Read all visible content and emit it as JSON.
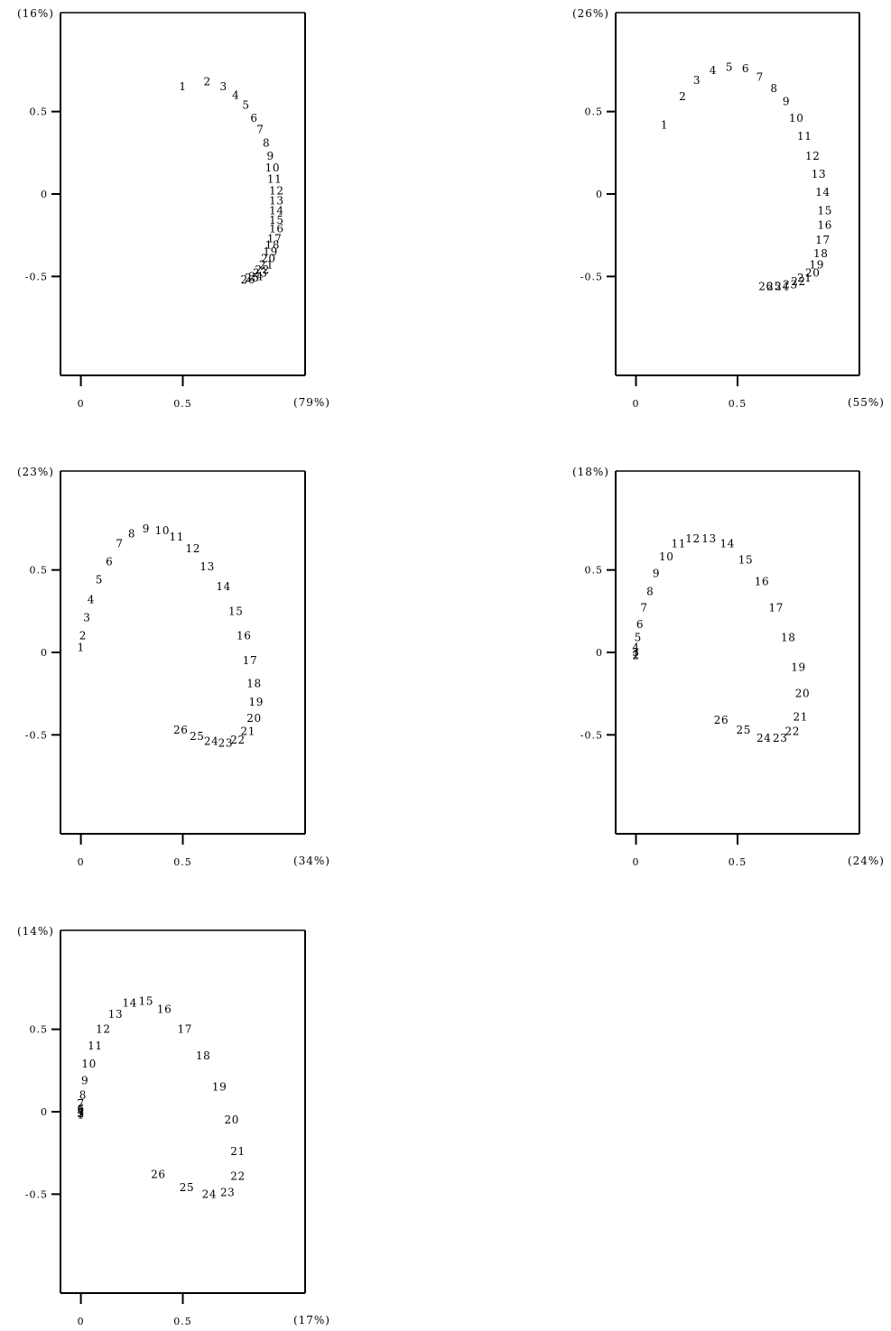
{
  "chart_data": [
    {
      "type": "scatter",
      "x_percent_label": "(79%)",
      "y_percent_label": "(16%)",
      "xlim": [
        -0.1,
        1.1
      ],
      "ylim": [
        -1.1,
        1.1
      ],
      "x_ticks": [
        {
          "value": 0,
          "label": "0"
        },
        {
          "value": 0.5,
          "label": "0.5"
        }
      ],
      "y_ticks": [
        {
          "value": 0.5,
          "label": "0.5"
        },
        {
          "value": 0,
          "label": "0"
        },
        {
          "value": -0.5,
          "label": "-0.5"
        }
      ],
      "points": [
        {
          "label": "1",
          "x": 0.5,
          "y": 0.65
        },
        {
          "label": "2",
          "x": 0.62,
          "y": 0.68
        },
        {
          "label": "3",
          "x": 0.7,
          "y": 0.65
        },
        {
          "label": "4",
          "x": 0.76,
          "y": 0.6
        },
        {
          "label": "5",
          "x": 0.81,
          "y": 0.54
        },
        {
          "label": "6",
          "x": 0.85,
          "y": 0.46
        },
        {
          "label": "7",
          "x": 0.88,
          "y": 0.39
        },
        {
          "label": "8",
          "x": 0.91,
          "y": 0.31
        },
        {
          "label": "9",
          "x": 0.93,
          "y": 0.23
        },
        {
          "label": "10",
          "x": 0.94,
          "y": 0.16
        },
        {
          "label": "11",
          "x": 0.95,
          "y": 0.09
        },
        {
          "label": "12",
          "x": 0.96,
          "y": 0.02
        },
        {
          "label": "13",
          "x": 0.96,
          "y": -0.04
        },
        {
          "label": "14",
          "x": 0.96,
          "y": -0.1
        },
        {
          "label": "15",
          "x": 0.96,
          "y": -0.16
        },
        {
          "label": "16",
          "x": 0.96,
          "y": -0.21
        },
        {
          "label": "17",
          "x": 0.95,
          "y": -0.27
        },
        {
          "label": "18",
          "x": 0.94,
          "y": -0.31
        },
        {
          "label": "19",
          "x": 0.93,
          "y": -0.35
        },
        {
          "label": "20",
          "x": 0.92,
          "y": -0.39
        },
        {
          "label": "21",
          "x": 0.91,
          "y": -0.43
        },
        {
          "label": "22",
          "x": 0.89,
          "y": -0.46
        },
        {
          "label": "23",
          "x": 0.88,
          "y": -0.48
        },
        {
          "label": "24",
          "x": 0.86,
          "y": -0.5
        },
        {
          "label": "25",
          "x": 0.84,
          "y": -0.51
        },
        {
          "label": "26",
          "x": 0.82,
          "y": -0.52
        }
      ]
    },
    {
      "type": "scatter",
      "x_percent_label": "(55%)",
      "y_percent_label": "(26%)",
      "xlim": [
        -0.1,
        1.1
      ],
      "ylim": [
        -1.1,
        1.1
      ],
      "x_ticks": [
        {
          "value": 0,
          "label": "0"
        },
        {
          "value": 0.5,
          "label": "0.5"
        }
      ],
      "y_ticks": [
        {
          "value": 0.5,
          "label": "0.5"
        },
        {
          "value": 0,
          "label": "0"
        },
        {
          "value": -0.5,
          "label": "-0.5"
        }
      ],
      "points": [
        {
          "label": "1",
          "x": 0.14,
          "y": 0.42
        },
        {
          "label": "2",
          "x": 0.23,
          "y": 0.59
        },
        {
          "label": "3",
          "x": 0.3,
          "y": 0.69
        },
        {
          "label": "4",
          "x": 0.38,
          "y": 0.75
        },
        {
          "label": "5",
          "x": 0.46,
          "y": 0.77
        },
        {
          "label": "6",
          "x": 0.54,
          "y": 0.76
        },
        {
          "label": "7",
          "x": 0.61,
          "y": 0.71
        },
        {
          "label": "8",
          "x": 0.68,
          "y": 0.64
        },
        {
          "label": "9",
          "x": 0.74,
          "y": 0.56
        },
        {
          "label": "10",
          "x": 0.79,
          "y": 0.46
        },
        {
          "label": "11",
          "x": 0.83,
          "y": 0.35
        },
        {
          "label": "12",
          "x": 0.87,
          "y": 0.23
        },
        {
          "label": "13",
          "x": 0.9,
          "y": 0.12
        },
        {
          "label": "14",
          "x": 0.92,
          "y": 0.01
        },
        {
          "label": "15",
          "x": 0.93,
          "y": -0.1
        },
        {
          "label": "16",
          "x": 0.93,
          "y": -0.19
        },
        {
          "label": "17",
          "x": 0.92,
          "y": -0.28
        },
        {
          "label": "18",
          "x": 0.91,
          "y": -0.36
        },
        {
          "label": "19",
          "x": 0.89,
          "y": -0.43
        },
        {
          "label": "20",
          "x": 0.87,
          "y": -0.48
        },
        {
          "label": "21",
          "x": 0.83,
          "y": -0.51
        },
        {
          "label": "22",
          "x": 0.8,
          "y": -0.53
        },
        {
          "label": "23",
          "x": 0.76,
          "y": -0.55
        },
        {
          "label": "24",
          "x": 0.72,
          "y": -0.56
        },
        {
          "label": "25",
          "x": 0.68,
          "y": -0.56
        },
        {
          "label": "26",
          "x": 0.64,
          "y": -0.56
        }
      ]
    },
    {
      "type": "scatter",
      "x_percent_label": "(34%)",
      "y_percent_label": "(23%)",
      "xlim": [
        -0.1,
        1.1
      ],
      "ylim": [
        -1.1,
        1.1
      ],
      "x_ticks": [
        {
          "value": 0,
          "label": "0"
        },
        {
          "value": 0.5,
          "label": "0.5"
        }
      ],
      "y_ticks": [
        {
          "value": 0.5,
          "label": "0.5"
        },
        {
          "value": 0,
          "label": "0"
        },
        {
          "value": -0.5,
          "label": "-0.5"
        }
      ],
      "points": [
        {
          "label": "1",
          "x": 0.0,
          "y": 0.03
        },
        {
          "label": "2",
          "x": 0.01,
          "y": 0.1
        },
        {
          "label": "3",
          "x": 0.03,
          "y": 0.21
        },
        {
          "label": "4",
          "x": 0.05,
          "y": 0.32
        },
        {
          "label": "5",
          "x": 0.09,
          "y": 0.44
        },
        {
          "label": "6",
          "x": 0.14,
          "y": 0.55
        },
        {
          "label": "7",
          "x": 0.19,
          "y": 0.66
        },
        {
          "label": "8",
          "x": 0.25,
          "y": 0.72
        },
        {
          "label": "9",
          "x": 0.32,
          "y": 0.75
        },
        {
          "label": "10",
          "x": 0.4,
          "y": 0.74
        },
        {
          "label": "11",
          "x": 0.47,
          "y": 0.7
        },
        {
          "label": "12",
          "x": 0.55,
          "y": 0.63
        },
        {
          "label": "13",
          "x": 0.62,
          "y": 0.52
        },
        {
          "label": "14",
          "x": 0.7,
          "y": 0.4
        },
        {
          "label": "15",
          "x": 0.76,
          "y": 0.25
        },
        {
          "label": "16",
          "x": 0.8,
          "y": 0.1
        },
        {
          "label": "17",
          "x": 0.83,
          "y": -0.05
        },
        {
          "label": "18",
          "x": 0.85,
          "y": -0.19
        },
        {
          "label": "19",
          "x": 0.86,
          "y": -0.3
        },
        {
          "label": "20",
          "x": 0.85,
          "y": -0.4
        },
        {
          "label": "21",
          "x": 0.82,
          "y": -0.48
        },
        {
          "label": "22",
          "x": 0.77,
          "y": -0.53
        },
        {
          "label": "23",
          "x": 0.71,
          "y": -0.55
        },
        {
          "label": "24",
          "x": 0.64,
          "y": -0.54
        },
        {
          "label": "25",
          "x": 0.57,
          "y": -0.51
        },
        {
          "label": "26",
          "x": 0.49,
          "y": -0.47
        }
      ]
    },
    {
      "type": "scatter",
      "x_percent_label": "(24%)",
      "y_percent_label": "(18%)",
      "xlim": [
        -0.1,
        1.1
      ],
      "ylim": [
        -1.1,
        1.1
      ],
      "x_ticks": [
        {
          "value": 0,
          "label": "0"
        },
        {
          "value": 0.5,
          "label": "0.5"
        }
      ],
      "y_ticks": [
        {
          "value": 0.5,
          "label": "0.5"
        },
        {
          "value": 0,
          "label": "0"
        },
        {
          "value": -0.5,
          "label": "-0.5"
        }
      ],
      "points": [
        {
          "label": "1",
          "x": 0.0,
          "y": -0.01
        },
        {
          "label": "2",
          "x": 0.0,
          "y": -0.02
        },
        {
          "label": "3",
          "x": 0.0,
          "y": 0.0
        },
        {
          "label": "4",
          "x": 0.0,
          "y": 0.03
        },
        {
          "label": "5",
          "x": 0.01,
          "y": 0.09
        },
        {
          "label": "6",
          "x": 0.02,
          "y": 0.17
        },
        {
          "label": "7",
          "x": 0.04,
          "y": 0.27
        },
        {
          "label": "8",
          "x": 0.07,
          "y": 0.37
        },
        {
          "label": "9",
          "x": 0.1,
          "y": 0.48
        },
        {
          "label": "10",
          "x": 0.15,
          "y": 0.58
        },
        {
          "label": "11",
          "x": 0.21,
          "y": 0.66
        },
        {
          "label": "12",
          "x": 0.28,
          "y": 0.69
        },
        {
          "label": "13",
          "x": 0.36,
          "y": 0.69
        },
        {
          "label": "14",
          "x": 0.45,
          "y": 0.66
        },
        {
          "label": "15",
          "x": 0.54,
          "y": 0.56
        },
        {
          "label": "16",
          "x": 0.62,
          "y": 0.43
        },
        {
          "label": "17",
          "x": 0.69,
          "y": 0.27
        },
        {
          "label": "18",
          "x": 0.75,
          "y": 0.09
        },
        {
          "label": "19",
          "x": 0.8,
          "y": -0.09
        },
        {
          "label": "20",
          "x": 0.82,
          "y": -0.25
        },
        {
          "label": "21",
          "x": 0.81,
          "y": -0.39
        },
        {
          "label": "22",
          "x": 0.77,
          "y": -0.48
        },
        {
          "label": "23",
          "x": 0.71,
          "y": -0.52
        },
        {
          "label": "24",
          "x": 0.63,
          "y": -0.52
        },
        {
          "label": "25",
          "x": 0.53,
          "y": -0.47
        },
        {
          "label": "26",
          "x": 0.42,
          "y": -0.41
        }
      ]
    },
    {
      "type": "scatter",
      "x_percent_label": "(17%)",
      "y_percent_label": "(14%)",
      "xlim": [
        -0.1,
        1.1
      ],
      "ylim": [
        -1.1,
        1.1
      ],
      "x_ticks": [
        {
          "value": 0,
          "label": "0"
        },
        {
          "value": 0.5,
          "label": "0.5"
        }
      ],
      "y_ticks": [
        {
          "value": 0.5,
          "label": "0.5"
        },
        {
          "value": 0,
          "label": "0"
        },
        {
          "value": -0.5,
          "label": "-0.5"
        }
      ],
      "points": [
        {
          "label": "1",
          "x": 0.0,
          "y": -0.02
        },
        {
          "label": "2",
          "x": 0.0,
          "y": -0.01
        },
        {
          "label": "3",
          "x": 0.0,
          "y": -0.01
        },
        {
          "label": "4",
          "x": 0.0,
          "y": 0.0
        },
        {
          "label": "5",
          "x": 0.0,
          "y": 0.01
        },
        {
          "label": "6",
          "x": 0.0,
          "y": 0.02
        },
        {
          "label": "7",
          "x": 0.0,
          "y": 0.05
        },
        {
          "label": "8",
          "x": 0.01,
          "y": 0.1
        },
        {
          "label": "9",
          "x": 0.02,
          "y": 0.19
        },
        {
          "label": "10",
          "x": 0.04,
          "y": 0.29
        },
        {
          "label": "11",
          "x": 0.07,
          "y": 0.4
        },
        {
          "label": "12",
          "x": 0.11,
          "y": 0.5
        },
        {
          "label": "13",
          "x": 0.17,
          "y": 0.59
        },
        {
          "label": "14",
          "x": 0.24,
          "y": 0.66
        },
        {
          "label": "15",
          "x": 0.32,
          "y": 0.67
        },
        {
          "label": "16",
          "x": 0.41,
          "y": 0.62
        },
        {
          "label": "17",
          "x": 0.51,
          "y": 0.5
        },
        {
          "label": "18",
          "x": 0.6,
          "y": 0.34
        },
        {
          "label": "19",
          "x": 0.68,
          "y": 0.15
        },
        {
          "label": "20",
          "x": 0.74,
          "y": -0.05
        },
        {
          "label": "21",
          "x": 0.77,
          "y": -0.24
        },
        {
          "label": "22",
          "x": 0.77,
          "y": -0.39
        },
        {
          "label": "23",
          "x": 0.72,
          "y": -0.49
        },
        {
          "label": "24",
          "x": 0.63,
          "y": -0.5
        },
        {
          "label": "25",
          "x": 0.52,
          "y": -0.46
        },
        {
          "label": "26",
          "x": 0.38,
          "y": -0.38
        }
      ]
    }
  ]
}
